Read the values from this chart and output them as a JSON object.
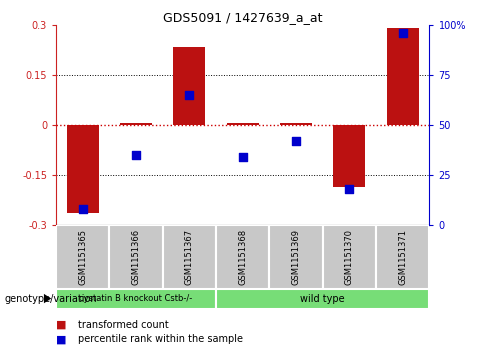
{
  "title": "GDS5091 / 1427639_a_at",
  "samples": [
    "GSM1151365",
    "GSM1151366",
    "GSM1151367",
    "GSM1151368",
    "GSM1151369",
    "GSM1151370",
    "GSM1151371"
  ],
  "bar_values": [
    -0.265,
    0.008,
    0.235,
    0.008,
    0.008,
    -0.185,
    0.292
  ],
  "dot_values": [
    8,
    35,
    65,
    34,
    42,
    18,
    96
  ],
  "ylim_left": [
    -0.3,
    0.3
  ],
  "ylim_right": [
    0,
    100
  ],
  "yticks_left": [
    -0.3,
    -0.15,
    0,
    0.15,
    0.3
  ],
  "yticks_right": [
    0,
    25,
    50,
    75,
    100
  ],
  "ytick_labels_left": [
    "-0.3",
    "-0.15",
    "0",
    "0.15",
    "0.3"
  ],
  "ytick_labels_right": [
    "0",
    "25",
    "50",
    "75",
    "100%"
  ],
  "bar_color": "#BB1111",
  "dot_color": "#0000CC",
  "hline_color": "#CC0000",
  "grid_color": "#000000",
  "grid_values": [
    -0.15,
    0.15
  ],
  "groups": [
    {
      "label": "cystatin B knockout Cstb-/-",
      "start": 0,
      "end": 3,
      "color": "#77DD77"
    },
    {
      "label": "wild type",
      "start": 3,
      "end": 7,
      "color": "#77DD77"
    }
  ],
  "group_label_prefix": "genotype/variation",
  "legend_items": [
    {
      "color": "#BB1111",
      "label": "transformed count"
    },
    {
      "color": "#0000CC",
      "label": "percentile rank within the sample"
    }
  ],
  "bar_width": 0.6,
  "dot_size": 40,
  "background_color": "#ffffff",
  "plot_bg_color": "#ffffff",
  "sample_box_color": "#C8C8C8",
  "title_fontsize": 9,
  "tick_fontsize": 7,
  "sample_fontsize": 6,
  "group_fontsize": 7,
  "legend_fontsize": 7
}
